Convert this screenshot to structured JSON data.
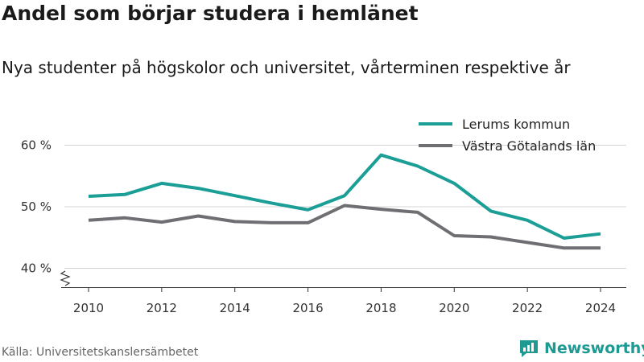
{
  "title": "Andel som börjar studera i hemlänet",
  "subtitle": "Nya studenter på högskolor och universitet, vårterminen respektive år",
  "source": "Källa: Universitetskanslersämbetet",
  "brand": {
    "name": "Newsworthy",
    "icon": "newsworthy-logo-icon",
    "color": "#1e9a93"
  },
  "chart_data": {
    "type": "line",
    "title": "",
    "xlabel": "",
    "ylabel": "",
    "x": [
      2010,
      2011,
      2012,
      2013,
      2014,
      2015,
      2016,
      2017,
      2018,
      2019,
      2020,
      2021,
      2022,
      2023,
      2024
    ],
    "x_ticks": [
      "2010",
      "2012",
      "2014",
      "2016",
      "2018",
      "2020",
      "2022",
      "2024"
    ],
    "y_ticks": [
      "40 %",
      "50 %",
      "60 %"
    ],
    "y_tick_values": [
      40,
      50,
      60
    ],
    "ylim": [
      37,
      63
    ],
    "y_axis_break": true,
    "grid": true,
    "legend_position": "top-right",
    "series": [
      {
        "name": "Lerums kommun",
        "color": "#1a9e96",
        "values": [
          51.7,
          52.0,
          53.8,
          53.0,
          51.8,
          50.6,
          49.5,
          51.8,
          58.4,
          56.6,
          53.8,
          49.3,
          47.8,
          44.9,
          45.6
        ]
      },
      {
        "name": "Västra Götalands län",
        "color": "#6e6e73",
        "values": [
          47.8,
          48.2,
          47.5,
          48.5,
          47.6,
          47.4,
          47.4,
          50.2,
          49.6,
          49.1,
          45.3,
          45.1,
          44.2,
          43.3,
          43.3
        ]
      }
    ]
  }
}
